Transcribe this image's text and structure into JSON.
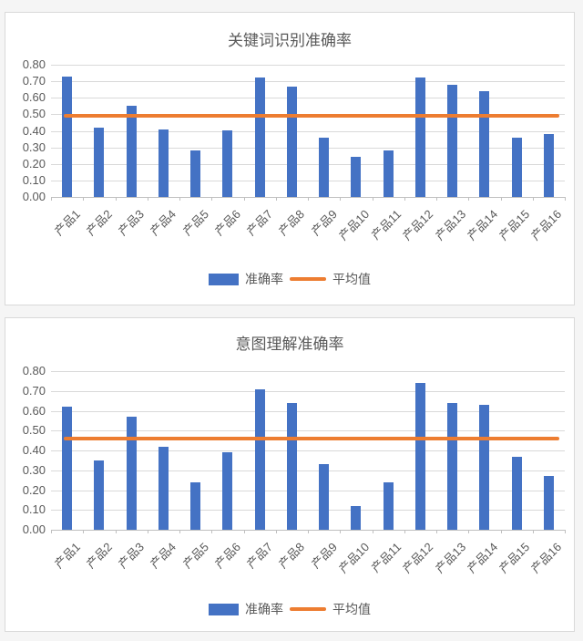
{
  "colors": {
    "bar": "#4472C4",
    "line": "#ED7D31",
    "grid": "#D9D9D9",
    "axis": "#BFBFBF",
    "text": "#595959",
    "panel_bg": "#FFFFFF",
    "panel_border": "#D9D9D9",
    "page_bg": "#F5F5F5"
  },
  "chart_data": [
    {
      "type": "bar",
      "title": "关键词识别准确率",
      "categories": [
        "产品1",
        "产品2",
        "产品3",
        "产品4",
        "产品5",
        "产品6",
        "产品7",
        "产品8",
        "产品9",
        "产品10",
        "产品11",
        "产品12",
        "产品13",
        "产品14",
        "产品15",
        "产品16"
      ],
      "series": [
        {
          "name": "准确率",
          "type": "bar",
          "values": [
            0.73,
            0.42,
            0.55,
            0.41,
            0.28,
            0.4,
            0.72,
            0.67,
            0.36,
            0.24,
            0.28,
            0.72,
            0.68,
            0.64,
            0.36,
            0.38
          ]
        },
        {
          "name": "平均值",
          "type": "line",
          "value": 0.49
        }
      ],
      "xlabel": "",
      "ylabel": "",
      "ylim": [
        0,
        0.8
      ],
      "yticks": [
        "0.80",
        "0.70",
        "0.60",
        "0.50",
        "0.40",
        "0.30",
        "0.20",
        "0.10",
        "0.00"
      ],
      "grid": true,
      "legend_position": "bottom"
    },
    {
      "type": "bar",
      "title": "意图理解准确率",
      "categories": [
        "产品1",
        "产品2",
        "产品3",
        "产品4",
        "产品5",
        "产品6",
        "产品7",
        "产品8",
        "产品9",
        "产品10",
        "产品11",
        "产品12",
        "产品13",
        "产品14",
        "产品15",
        "产品16"
      ],
      "series": [
        {
          "name": "准确率",
          "type": "bar",
          "values": [
            0.62,
            0.35,
            0.57,
            0.42,
            0.24,
            0.39,
            0.71,
            0.64,
            0.33,
            0.12,
            0.24,
            0.74,
            0.64,
            0.63,
            0.37,
            0.27
          ]
        },
        {
          "name": "平均值",
          "type": "line",
          "value": 0.46
        }
      ],
      "xlabel": "",
      "ylabel": "",
      "ylim": [
        0,
        0.8
      ],
      "yticks": [
        "0.80",
        "0.70",
        "0.60",
        "0.50",
        "0.40",
        "0.30",
        "0.20",
        "0.10",
        "0.00"
      ],
      "grid": true,
      "legend_position": "bottom"
    }
  ]
}
